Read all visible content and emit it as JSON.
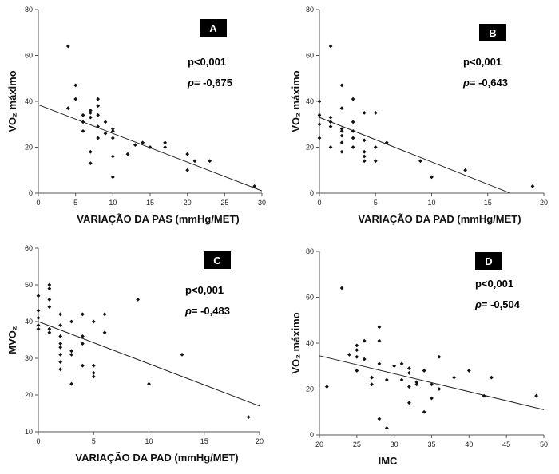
{
  "chart_data": [
    {
      "type": "scatter",
      "panel_label": "A",
      "stats": {
        "p": "p<0,001",
        "rho_symbol": "ρ",
        "rho": "= -0,675"
      },
      "xlabel": "VARIAÇÃO DA PAS (mmHg/MET)",
      "ylabel": "VO₂ máximo",
      "xlim": [
        0,
        30
      ],
      "ylim": [
        0,
        80
      ],
      "xticks": [
        0,
        5,
        10,
        15,
        20,
        25,
        30
      ],
      "yticks": [
        0,
        20,
        40,
        60,
        80
      ],
      "x": [
        4,
        5,
        4,
        5,
        6,
        6,
        6,
        7,
        7,
        7,
        7,
        7,
        8,
        8,
        8,
        8,
        8,
        9,
        9,
        10,
        10,
        10,
        10,
        10,
        12,
        13,
        14,
        15,
        17,
        17,
        20,
        20,
        21,
        23,
        29
      ],
      "y": [
        64,
        47,
        37,
        41,
        34,
        31,
        27,
        36,
        35,
        33,
        18,
        13,
        41,
        38,
        34,
        29,
        24,
        31,
        26,
        28,
        27,
        24,
        16,
        7,
        17,
        21,
        22,
        20,
        22,
        20,
        17,
        10,
        14,
        14,
        3
      ],
      "fit_line": {
        "x": [
          0,
          30
        ],
        "y": [
          38.5,
          1
        ]
      }
    },
    {
      "type": "scatter",
      "panel_label": "B",
      "stats": {
        "p": "p<0,001",
        "rho_symbol": "ρ",
        "rho": "= -0,643"
      },
      "xlabel": "VARIAÇÃO DA PAD (mmHg/MET)",
      "ylabel": "VO₂ máximo",
      "xlim": [
        0,
        20
      ],
      "ylim": [
        0,
        80
      ],
      "xticks": [
        0,
        5,
        10,
        15,
        20
      ],
      "yticks": [
        0,
        20,
        40,
        60,
        80
      ],
      "x": [
        0,
        0,
        0,
        0,
        1,
        1,
        1,
        1,
        1,
        2,
        2,
        2,
        2,
        2,
        2,
        2,
        3,
        3,
        3,
        3,
        3,
        4,
        4,
        4,
        4,
        4,
        5,
        5,
        5,
        6,
        9,
        10,
        13,
        19
      ],
      "y": [
        40,
        34,
        30,
        24,
        64,
        33,
        31,
        29,
        20,
        47,
        37,
        28,
        27,
        25,
        22,
        18,
        41,
        31,
        27,
        24,
        20,
        35,
        23,
        18,
        16,
        14,
        35,
        20,
        14,
        22,
        14,
        7,
        10,
        3
      ],
      "fit_line": {
        "x": [
          0,
          17
        ],
        "y": [
          33,
          0
        ]
      }
    },
    {
      "type": "scatter",
      "panel_label": "C",
      "stats": {
        "p": "p<0,001",
        "rho_symbol": "ρ",
        "rho": "= -0,483"
      },
      "xlabel": "VARIAÇÃO DA PAD (mmHg/MET)",
      "ylabel": "MVO₂",
      "xlim": [
        0,
        20
      ],
      "ylim": [
        10,
        60
      ],
      "xticks": [
        0,
        5,
        10,
        15,
        20
      ],
      "yticks": [
        10,
        20,
        30,
        40,
        50,
        60
      ],
      "x": [
        0,
        0,
        0,
        0,
        0,
        1,
        1,
        1,
        1,
        1,
        1,
        2,
        2,
        2,
        2,
        2,
        2,
        2,
        2,
        3,
        3,
        3,
        3,
        4,
        4,
        4,
        4,
        5,
        5,
        5,
        5,
        6,
        6,
        9,
        10,
        13,
        19
      ],
      "y": [
        47,
        43,
        41,
        39,
        38,
        50,
        49,
        46,
        44,
        38,
        37,
        42,
        39,
        36,
        34,
        33,
        31,
        29,
        27,
        40,
        32,
        31,
        23,
        42,
        36,
        34,
        28,
        40,
        28,
        26,
        25,
        42,
        37,
        46,
        23,
        31,
        14
      ],
      "fit_line": {
        "x": [
          0,
          20
        ],
        "y": [
          40,
          17
        ]
      }
    },
    {
      "type": "scatter",
      "panel_label": "D",
      "stats": {
        "p": "p<0,001",
        "rho_symbol": "ρ",
        "rho": "= -0,504"
      },
      "xlabel": "IMC",
      "ylabel": "VO₂ máximo",
      "xlim": [
        20,
        50
      ],
      "ylim": [
        0,
        80
      ],
      "xticks": [
        20,
        25,
        30,
        35,
        40,
        45,
        50
      ],
      "yticks": [
        0,
        20,
        40,
        60,
        80
      ],
      "x": [
        21,
        23,
        24,
        25,
        25,
        25,
        25,
        26,
        26,
        27,
        27,
        28,
        28,
        28,
        28,
        29,
        29,
        30,
        31,
        31,
        32,
        32,
        32,
        32,
        33,
        33,
        34,
        34,
        35,
        35,
        36,
        36,
        38,
        40,
        42,
        43,
        49
      ],
      "y": [
        21,
        64,
        35,
        39,
        37,
        34,
        28,
        41,
        33,
        25,
        22,
        47,
        41,
        31,
        7,
        24,
        3,
        30,
        31,
        24,
        29,
        27,
        21,
        14,
        23,
        22,
        28,
        10,
        16,
        22,
        34,
        20,
        25,
        28,
        17,
        25,
        17
      ],
      "fit_line": {
        "x": [
          20,
          50
        ],
        "y": [
          34.5,
          11
        ]
      }
    }
  ]
}
